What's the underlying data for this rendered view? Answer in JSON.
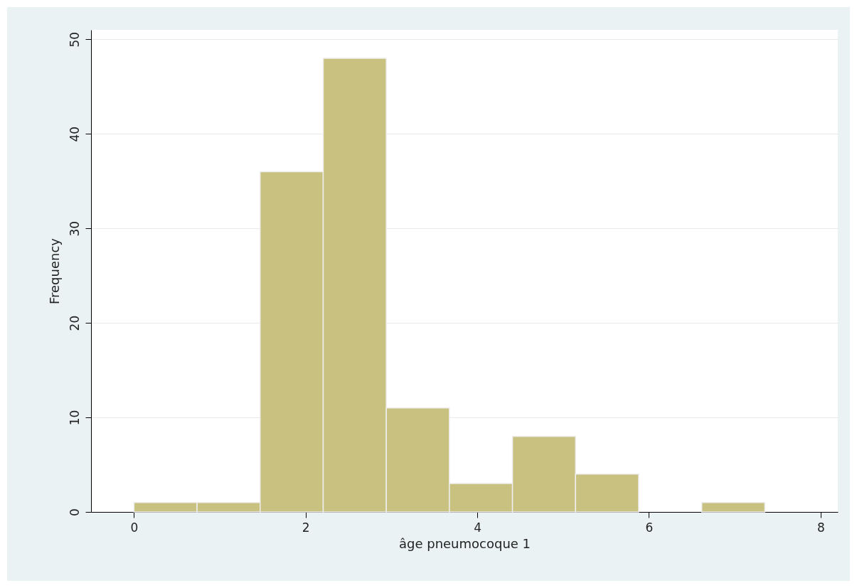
{
  "chart_data": {
    "type": "histogram",
    "xlabel": "âge pneumocoque 1",
    "ylabel": "Frequency",
    "bins": [
      0,
      0.735,
      1.47,
      2.205,
      2.94,
      3.675,
      4.41,
      5.145,
      5.88,
      6.615,
      7.35
    ],
    "values": [
      1,
      1,
      36,
      48,
      11,
      3,
      8,
      4,
      0,
      1
    ],
    "color": "#c9c17f",
    "xlim": [
      -0.5,
      8.2
    ],
    "xticks": [
      0,
      2,
      4,
      6,
      8
    ],
    "ylim": [
      0,
      51
    ],
    "yticks": [
      0,
      10,
      20,
      30,
      40,
      50
    ],
    "grid": "y"
  }
}
